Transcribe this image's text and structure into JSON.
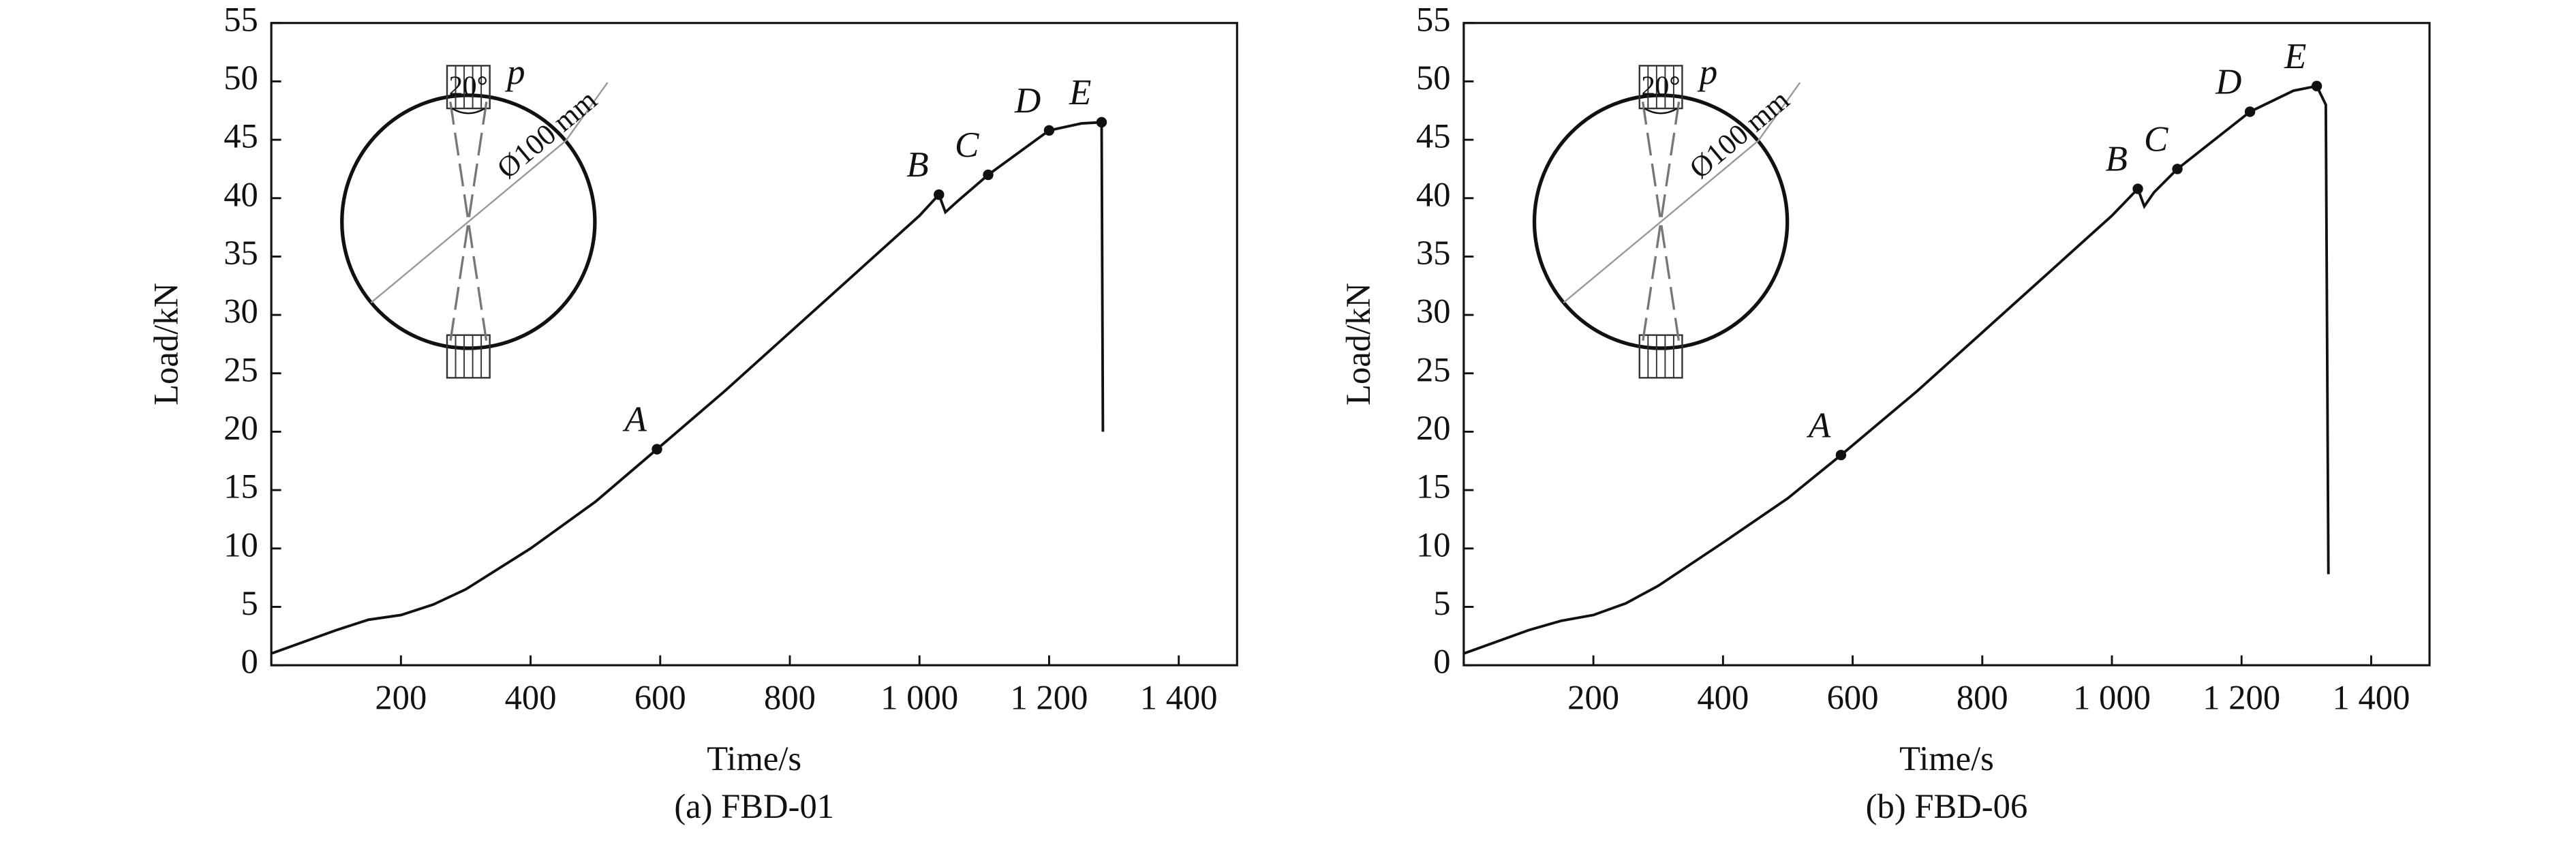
{
  "chart_data": [
    {
      "type": "line",
      "caption": "(a) FBD-01",
      "xlabel": "Time/s",
      "ylabel": "Load/kN",
      "xlim": [
        0,
        1490
      ],
      "ylim": [
        0,
        55
      ],
      "xticks": [
        200,
        400,
        600,
        800,
        {
          "value": 1000,
          "label": "1 000"
        },
        {
          "value": 1200,
          "label": "1 200"
        },
        {
          "value": 1400,
          "label": "1 400"
        }
      ],
      "yticks": [
        0,
        5,
        10,
        15,
        20,
        25,
        30,
        35,
        40,
        45,
        50,
        55
      ],
      "color": "#111111",
      "x": [
        0,
        50,
        100,
        150,
        200,
        250,
        300,
        400,
        500,
        595,
        700,
        800,
        900,
        1000,
        1030,
        1040,
        1060,
        1106,
        1200,
        1250,
        1281,
        1283
      ],
      "values": [
        1,
        2,
        3,
        3.9,
        4.3,
        5.2,
        6.5,
        10,
        14,
        18.5,
        23.5,
        28.5,
        33.5,
        38.5,
        40.3,
        38.8,
        39.8,
        42,
        45.8,
        46.4,
        46.5,
        20
      ],
      "points": {
        "labels": [
          "A",
          "B",
          "C",
          "D",
          "E"
        ],
        "x": [
          595,
          1030,
          1106,
          1200,
          1281
        ],
        "y": [
          18.5,
          40.3,
          42,
          45.8,
          46.5
        ]
      },
      "inset": {
        "load": "p",
        "angle": "20°",
        "diameter": "Ø100 mm"
      }
    },
    {
      "type": "line",
      "caption": "(b) FBD-06",
      "xlabel": "Time/s",
      "ylabel": "Load/kN",
      "xlim": [
        0,
        1490
      ],
      "ylim": [
        0,
        55
      ],
      "xticks": [
        200,
        400,
        600,
        800,
        {
          "value": 1000,
          "label": "1 000"
        },
        {
          "value": 1200,
          "label": "1 200"
        },
        {
          "value": 1400,
          "label": "1 400"
        }
      ],
      "yticks": [
        0,
        5,
        10,
        15,
        20,
        25,
        30,
        35,
        40,
        45,
        50,
        55
      ],
      "color": "#111111",
      "x": [
        0,
        50,
        100,
        150,
        200,
        250,
        300,
        400,
        500,
        582,
        700,
        800,
        900,
        1000,
        1040,
        1050,
        1065,
        1101,
        1213,
        1280,
        1316,
        1330,
        1334
      ],
      "values": [
        1,
        2,
        3,
        3.8,
        4.3,
        5.3,
        6.8,
        10.5,
        14.3,
        18,
        23.5,
        28.5,
        33.5,
        38.5,
        40.8,
        39.3,
        40.5,
        42.5,
        47.4,
        49.2,
        49.6,
        48,
        7.8
      ],
      "points": {
        "labels": [
          "A",
          "B",
          "C",
          "D",
          "E"
        ],
        "x": [
          582,
          1040,
          1101,
          1213,
          1316
        ],
        "y": [
          18,
          40.8,
          42.5,
          47.4,
          49.6
        ]
      },
      "inset": {
        "load": "p",
        "angle": "20°",
        "diameter": "Ø100 mm"
      }
    }
  ]
}
